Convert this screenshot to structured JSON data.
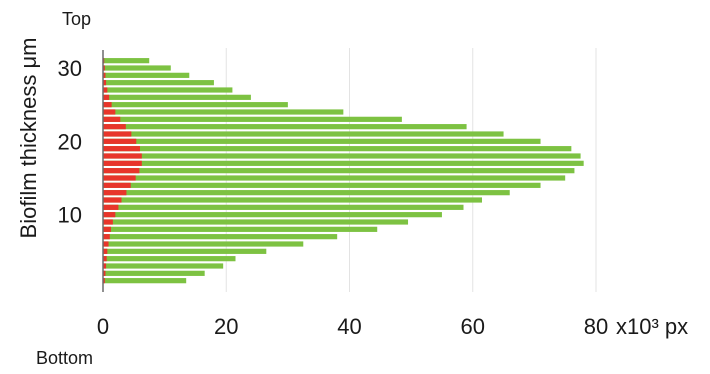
{
  "chart_data": {
    "type": "bar",
    "orientation": "horizontal",
    "stacked": false,
    "title": "",
    "ylabel": "Biofilm thickness μm",
    "xlabel_unit": "x10³ px",
    "top_label": "Top",
    "bottom_label": "Bottom",
    "xlim": [
      0,
      80
    ],
    "ylim": [
      0,
      31.5
    ],
    "x_ticks": [
      0,
      20,
      40,
      60,
      80
    ],
    "y_ticks": [
      10,
      20,
      30
    ],
    "grid": "vertical",
    "series": [
      {
        "color": "#7dc242",
        "y": [
          1,
          2,
          3,
          4,
          5,
          6,
          7,
          8,
          9,
          10,
          11,
          12,
          13,
          14,
          15,
          16,
          17,
          18,
          19,
          20,
          21,
          22,
          23,
          24,
          25,
          26,
          27,
          28,
          29,
          30,
          31
        ],
        "values": [
          13.5,
          16.5,
          19.5,
          21.5,
          26.5,
          32.5,
          38,
          44.5,
          49.5,
          55,
          58.5,
          61.5,
          66,
          71,
          75,
          76.5,
          78,
          77.5,
          76,
          71,
          65,
          59,
          48.5,
          39,
          30,
          24,
          21,
          18,
          14,
          11,
          7.5
        ]
      },
      {
        "color": "#e8352b",
        "y": [
          1,
          2,
          3,
          4,
          5,
          6,
          7,
          8,
          9,
          10,
          11,
          12,
          13,
          14,
          15,
          16,
          17,
          18,
          19,
          20,
          21,
          22,
          23,
          24,
          25,
          26,
          27,
          28,
          29,
          30,
          31
        ],
        "values": [
          0.3,
          0.4,
          0.5,
          0.6,
          0.7,
          0.9,
          1.1,
          1.3,
          1.6,
          2.0,
          2.5,
          3.0,
          3.8,
          4.5,
          5.3,
          5.9,
          6.3,
          6.3,
          6.0,
          5.4,
          4.6,
          3.7,
          2.8,
          2.0,
          1.4,
          1.0,
          0.7,
          0.5,
          0.4,
          0.3,
          0.2
        ]
      }
    ]
  }
}
